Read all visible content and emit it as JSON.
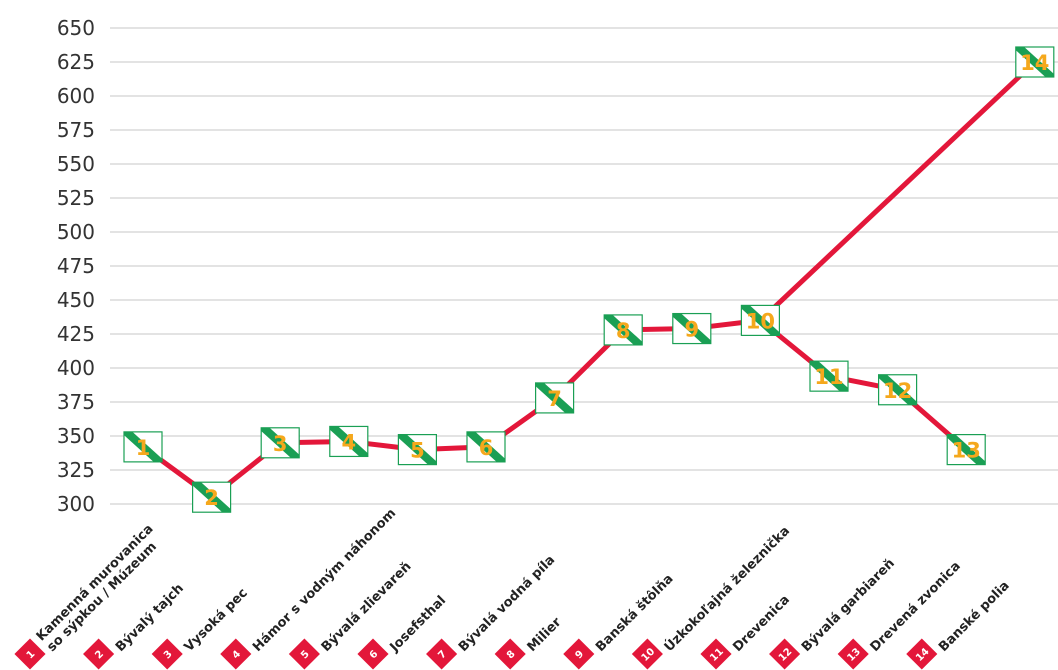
{
  "chart_data": {
    "type": "line",
    "title": "",
    "xlabel": "",
    "ylabel": "",
    "ylim": [
      300,
      650
    ],
    "yticks": [
      300,
      325,
      350,
      375,
      400,
      425,
      450,
      475,
      500,
      525,
      550,
      575,
      600,
      625,
      650
    ],
    "grid": true,
    "categories": [
      {
        "num": "1",
        "label": "Kamenná murovanica\nso sýpkou / Múzeum"
      },
      {
        "num": "2",
        "label": "Bývalý tajch"
      },
      {
        "num": "3",
        "label": "Vysoká pec"
      },
      {
        "num": "4",
        "label": "Hámor s vodným náhonom"
      },
      {
        "num": "5",
        "label": "Bývalá zlievareň"
      },
      {
        "num": "6",
        "label": "Josefsthal"
      },
      {
        "num": "7",
        "label": "Bývalá vodná píla"
      },
      {
        "num": "8",
        "label": "Milier"
      },
      {
        "num": "9",
        "label": "Banská štôlňa"
      },
      {
        "num": "10",
        "label": "Úzkokoľajná železnička"
      },
      {
        "num": "11",
        "label": "Drevenica"
      },
      {
        "num": "12",
        "label": "Bývalá garbiareň"
      },
      {
        "num": "13",
        "label": "Drevená zvonica"
      },
      {
        "num": "14",
        "label": "Banské polia"
      }
    ],
    "x_index": [
      0,
      1,
      2,
      3,
      4,
      5,
      6,
      7,
      8,
      9,
      10,
      11,
      12,
      13
    ],
    "values": [
      342,
      305,
      345,
      346,
      340,
      342,
      378,
      428,
      429,
      435,
      394,
      384,
      340,
      625
    ],
    "path_order": [
      {
        "from": 0,
        "to": 1
      },
      {
        "from": 1,
        "to": 2
      },
      {
        "from": 2,
        "to": 3
      },
      {
        "from": 3,
        "to": 4
      },
      {
        "from": 4,
        "to": 5
      },
      {
        "from": 5,
        "to": 6
      },
      {
        "from": 6,
        "to": 7
      },
      {
        "from": 7,
        "to": 8
      },
      {
        "from": 8,
        "to": 9
      },
      {
        "from": 9,
        "to": 10
      },
      {
        "from": 10,
        "to": 11
      },
      {
        "from": 11,
        "to": 12
      },
      {
        "from": 9,
        "to": 13
      }
    ],
    "colors": {
      "line": "#e3173a",
      "grid": "#d2d2d2",
      "tick_text": "#333333",
      "marker_green": "#1a9f54",
      "marker_number": "#f5a81c",
      "badge": "#e3173a",
      "badge_text": "#ffffff",
      "label_text": "#222222"
    }
  }
}
